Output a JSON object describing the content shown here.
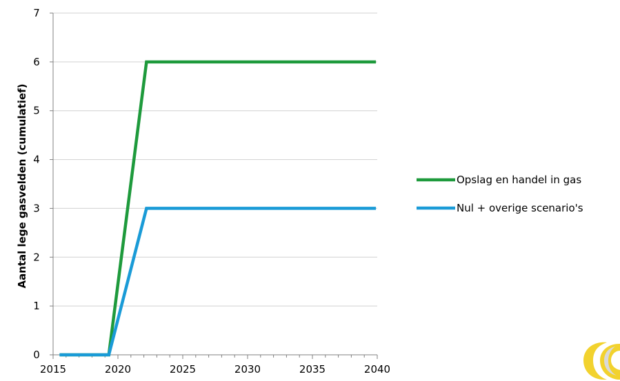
{
  "chart_data": {
    "type": "line",
    "title": "",
    "xlabel": "",
    "ylabel": "Aantal lege gasvelden (cumulatief)",
    "xlim": [
      2015,
      2040
    ],
    "ylim": [
      0,
      7
    ],
    "xticks": [
      2015,
      2020,
      2025,
      2030,
      2035,
      2040
    ],
    "yticks": [
      0,
      1,
      2,
      3,
      4,
      5,
      6,
      7
    ],
    "grid": "horizontal",
    "legend_position": "right",
    "series": [
      {
        "name": "Opslag en handel in gas",
        "color": "#1E9A3C",
        "points": [
          [
            2015.5,
            0
          ],
          [
            2019.3,
            0
          ],
          [
            2022.2,
            6
          ],
          [
            2039.9,
            6
          ]
        ]
      },
      {
        "name": "Nul + overige scenario's",
        "color": "#1A9BD7",
        "points": [
          [
            2015.5,
            0
          ],
          [
            2019.3,
            0
          ],
          [
            2022.2,
            3
          ],
          [
            2039.9,
            3
          ]
        ]
      }
    ]
  },
  "logo": {
    "name": "logo-icon",
    "colors": [
      "#F2D22E",
      "#D9D9D9"
    ]
  }
}
